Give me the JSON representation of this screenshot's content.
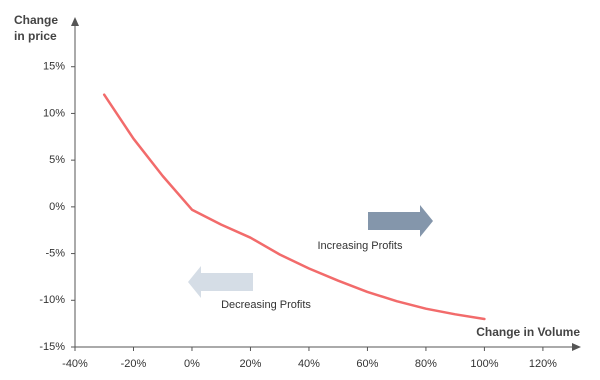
{
  "chart_data": {
    "type": "line",
    "y_label": "Change in price",
    "x_label": "Change in Volume",
    "annotations": [
      "Increasing Profits",
      "Decreasing Profits"
    ],
    "x": [
      -30,
      -20,
      -10,
      0,
      10,
      20,
      30,
      40,
      50,
      60,
      70,
      80,
      90,
      100
    ],
    "series": [
      {
        "color": "#f26b6b",
        "values": [
          12,
          7.3,
          3.3,
          -0.3,
          -1.9,
          -3.3,
          -5.1,
          -6.6,
          -7.9,
          -9.1,
          -10.1,
          -10.9,
          -11.5,
          -12
        ]
      }
    ],
    "xlim": [
      -40,
      132
    ],
    "ylim": [
      -15,
      20
    ],
    "xticks": [
      {
        "value": -40,
        "label": "-40%"
      },
      {
        "value": -20,
        "label": "-20%"
      },
      {
        "value": 0,
        "label": "0%"
      },
      {
        "value": 20,
        "label": "20%"
      },
      {
        "value": 40,
        "label": "40%"
      },
      {
        "value": 60,
        "label": "60%"
      },
      {
        "value": 80,
        "label": "80%"
      },
      {
        "value": 100,
        "label": "100%"
      },
      {
        "value": 120,
        "label": "120%"
      }
    ],
    "yticks": [
      {
        "value": -15,
        "label": "-15%"
      },
      {
        "value": -10,
        "label": "-10%"
      },
      {
        "value": -5,
        "label": "-5%"
      },
      {
        "value": 0,
        "label": "0%"
      },
      {
        "value": 5,
        "label": "5%"
      },
      {
        "value": 10,
        "label": "10%"
      },
      {
        "value": 15,
        "label": "15%"
      }
    ]
  }
}
